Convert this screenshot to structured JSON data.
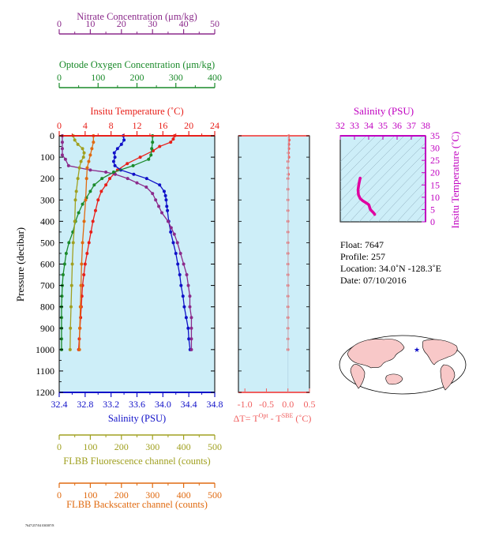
{
  "float_info": {
    "float": "Float:  7647",
    "profile": "Profile:  257",
    "location": "Location:  34.0˚N  -128.3˚E",
    "date": "Date:  07/10/2016"
  },
  "footer_code": "7647/257/04 030387/8",
  "colors": {
    "nitrate": "#8b2a8b",
    "oxygen": "#1a8a2a",
    "temperature": "#e8201a",
    "salinity": "#1010c8",
    "fluorescence": "#a0a020",
    "backscatter": "#e06a10",
    "delta": "#f06060",
    "ts_curve": "#e000a0",
    "plot_bg": "#cdeef8"
  },
  "chart_data": [
    {
      "type": "line",
      "title": "",
      "ylabel": "Pressure (decibar)",
      "ylim": [
        1200,
        0
      ],
      "yticks": [
        "0",
        "100",
        "200",
        "300",
        "400",
        "500",
        "600",
        "700",
        "800",
        "900",
        "1000",
        "1100",
        "1200"
      ],
      "axes": {
        "nitrate": {
          "label": "Nitrate Concentration (μm/kg)",
          "ticks": [
            "0",
            "10",
            "20",
            "30",
            "40",
            "50"
          ],
          "range": [
            0,
            50
          ]
        },
        "oxygen": {
          "label": "Optode Oxygen Concentration (μm/kg)",
          "ticks": [
            "0",
            "100",
            "200",
            "300",
            "400"
          ],
          "range": [
            0,
            400
          ]
        },
        "temperature": {
          "label": "Insitu Temperature (˚C)",
          "ticks": [
            "0",
            "4",
            "8",
            "12",
            "16",
            "20",
            "24"
          ],
          "range": [
            0,
            24
          ]
        },
        "salinity": {
          "label": "Salinity (PSU)",
          "ticks": [
            "32.4",
            "32.8",
            "33.2",
            "33.6",
            "34.0",
            "34.4",
            "34.8"
          ],
          "range": [
            32.4,
            34.8
          ]
        },
        "fluorescence": {
          "label": "FLBB Fluorescence channel (counts)",
          "ticks": [
            "0",
            "100",
            "200",
            "300",
            "400",
            "500"
          ],
          "range": [
            0,
            500
          ]
        },
        "backscatter": {
          "label": "FLBB Backscatter channel (counts)",
          "ticks": [
            "0",
            "100",
            "200",
            "300",
            "400",
            "500"
          ],
          "range": [
            0,
            500
          ]
        }
      },
      "series": [
        {
          "key": "temperature",
          "points": [
            [
              17.8,
              0
            ],
            [
              17.6,
              15
            ],
            [
              17.2,
              30
            ],
            [
              15.5,
              50
            ],
            [
              14.5,
              70
            ],
            [
              12.5,
              100
            ],
            [
              10.5,
              130
            ],
            [
              9.0,
              160
            ],
            [
              7.8,
              200
            ],
            [
              7.2,
              230
            ],
            [
              6.5,
              260
            ],
            [
              6.0,
              300
            ],
            [
              5.6,
              350
            ],
            [
              5.2,
              400
            ],
            [
              4.9,
              450
            ],
            [
              4.6,
              500
            ],
            [
              4.3,
              550
            ],
            [
              4.0,
              600
            ],
            [
              3.8,
              650
            ],
            [
              3.6,
              700
            ],
            [
              3.5,
              750
            ],
            [
              3.4,
              800
            ],
            [
              3.3,
              850
            ],
            [
              3.2,
              900
            ],
            [
              3.1,
              950
            ],
            [
              3.0,
              1000
            ]
          ]
        },
        {
          "key": "salinity",
          "points": [
            [
              33.39,
              0
            ],
            [
              33.4,
              20
            ],
            [
              33.36,
              40
            ],
            [
              33.3,
              60
            ],
            [
              33.25,
              80
            ],
            [
              33.26,
              100
            ],
            [
              33.24,
              120
            ],
            [
              33.26,
              140
            ],
            [
              33.35,
              160
            ],
            [
              33.55,
              180
            ],
            [
              33.75,
              200
            ],
            [
              33.95,
              230
            ],
            [
              34.02,
              260
            ],
            [
              34.04,
              280
            ],
            [
              34.05,
              300
            ],
            [
              34.06,
              330
            ],
            [
              34.07,
              350
            ],
            [
              34.09,
              400
            ],
            [
              34.12,
              450
            ],
            [
              34.16,
              500
            ],
            [
              34.2,
              550
            ],
            [
              34.23,
              600
            ],
            [
              34.26,
              650
            ],
            [
              34.28,
              700
            ],
            [
              34.31,
              750
            ],
            [
              34.33,
              800
            ],
            [
              34.36,
              850
            ],
            [
              34.39,
              900
            ],
            [
              34.4,
              950
            ],
            [
              34.42,
              1000
            ]
          ]
        },
        {
          "key": "nitrate",
          "points": [
            [
              1,
              0
            ],
            [
              1,
              30
            ],
            [
              1,
              60
            ],
            [
              1,
              90
            ],
            [
              2,
              110
            ],
            [
              3,
              140
            ],
            [
              10,
              160
            ],
            [
              15,
              170
            ],
            [
              18,
              180
            ],
            [
              22,
              200
            ],
            [
              25,
              220
            ],
            [
              28,
              240
            ],
            [
              30,
              270
            ],
            [
              31,
              300
            ],
            [
              32,
              330
            ],
            [
              33,
              360
            ],
            [
              35,
              400
            ],
            [
              36,
              430
            ],
            [
              37,
              460
            ],
            [
              38,
              500
            ],
            [
              39,
              550
            ],
            [
              40,
              600
            ],
            [
              41,
              650
            ],
            [
              41.5,
              700
            ],
            [
              42,
              750
            ],
            [
              42,
              800
            ],
            [
              42.5,
              850
            ],
            [
              42.5,
              900
            ],
            [
              42.5,
              950
            ],
            [
              42.5,
              1000
            ]
          ]
        },
        {
          "key": "oxygen",
          "points": [
            [
              240,
              0
            ],
            [
              240,
              30
            ],
            [
              238,
              60
            ],
            [
              236,
              90
            ],
            [
              230,
              110
            ],
            [
              190,
              140
            ],
            [
              140,
              170
            ],
            [
              110,
              200
            ],
            [
              90,
              230
            ],
            [
              80,
              260
            ],
            [
              70,
              290
            ],
            [
              60,
              320
            ],
            [
              50,
              360
            ],
            [
              42,
              400
            ],
            [
              35,
              450
            ],
            [
              25,
              500
            ],
            [
              18,
              550
            ],
            [
              14,
              600
            ],
            [
              10,
              650
            ],
            [
              8,
              700
            ],
            [
              7,
              750
            ],
            [
              6,
              800
            ],
            [
              6,
              850
            ],
            [
              6,
              900
            ],
            [
              6,
              950
            ],
            [
              6,
              1000
            ]
          ]
        },
        {
          "key": "fluorescence",
          "points": [
            [
              45,
              0
            ],
            [
              50,
              20
            ],
            [
              60,
              40
            ],
            [
              75,
              60
            ],
            [
              80,
              80
            ],
            [
              78,
              100
            ],
            [
              70,
              120
            ],
            [
              65,
              150
            ],
            [
              60,
              200
            ],
            [
              55,
              260
            ],
            [
              52,
              300
            ],
            [
              50,
              400
            ],
            [
              45,
              500
            ],
            [
              42,
              600
            ],
            [
              40,
              700
            ],
            [
              38,
              800
            ],
            [
              36,
              900
            ],
            [
              35,
              1000
            ]
          ]
        },
        {
          "key": "backscatter",
          "points": [
            [
              110,
              0
            ],
            [
              110,
              30
            ],
            [
              105,
              60
            ],
            [
              100,
              90
            ],
            [
              95,
              120
            ],
            [
              90,
              150
            ],
            [
              88,
              200
            ],
            [
              85,
              300
            ],
            [
              80,
              400
            ],
            [
              75,
              500
            ],
            [
              72,
              600
            ],
            [
              70,
              700
            ],
            [
              68,
              800
            ],
            [
              66,
              900
            ],
            [
              65,
              1000
            ]
          ]
        }
      ]
    },
    {
      "type": "line",
      "title": "",
      "xlabel_prefix": "ΔT= T",
      "xlabel_sup1": "Opt",
      "xlabel_mid": " - T",
      "xlabel_sup2": "SBE",
      "xlabel_suffix": " (˚C)",
      "xticks": [
        "-1.0",
        "-0.5",
        "0.0",
        "0.5"
      ],
      "xlim": [
        -1.15,
        0.5
      ],
      "ylim": [
        1200,
        0
      ],
      "series": [
        {
          "key": "delta",
          "points": [
            [
              0.02,
              0
            ],
            [
              0.03,
              20
            ],
            [
              0.02,
              40
            ],
            [
              0.02,
              60
            ],
            [
              0.01,
              80
            ],
            [
              0.02,
              100
            ],
            [
              0.0,
              120
            ],
            [
              0.0,
              150
            ],
            [
              0.01,
              180
            ],
            [
              0.0,
              200
            ],
            [
              0.0,
              250
            ],
            [
              0.0,
              300
            ],
            [
              0.0,
              350
            ],
            [
              0.0,
              400
            ],
            [
              0.0,
              450
            ],
            [
              0.0,
              500
            ],
            [
              0.0,
              550
            ],
            [
              0.0,
              600
            ],
            [
              0.0,
              650
            ],
            [
              0.0,
              700
            ],
            [
              0.0,
              750
            ],
            [
              0.0,
              800
            ],
            [
              0.0,
              850
            ],
            [
              0.0,
              900
            ],
            [
              0.0,
              950
            ],
            [
              0.0,
              1000
            ]
          ]
        }
      ]
    },
    {
      "type": "line",
      "title": "Salinity (PSU)",
      "xticks": [
        "32",
        "33",
        "34",
        "35",
        "36",
        "37",
        "38"
      ],
      "xlim": [
        32,
        38
      ],
      "ylabel": "Insitu Temperature (˚C)",
      "yticks": [
        "0",
        "5",
        "10",
        "15",
        "20",
        "25",
        "30",
        "35"
      ],
      "ylim": [
        0,
        35
      ],
      "series": [
        {
          "key": "ts_curve",
          "points": [
            [
              33.4,
              17.8
            ],
            [
              33.35,
              16.5
            ],
            [
              33.3,
              15
            ],
            [
              33.25,
              13
            ],
            [
              33.28,
              11
            ],
            [
              33.4,
              9.5
            ],
            [
              33.6,
              8.5
            ],
            [
              33.8,
              7.8
            ],
            [
              34.0,
              7.0
            ],
            [
              34.05,
              6.3
            ],
            [
              34.08,
              5.6
            ],
            [
              34.12,
              5.0
            ],
            [
              34.18,
              4.6
            ],
            [
              34.25,
              4.2
            ],
            [
              34.32,
              3.8
            ],
            [
              34.38,
              3.4
            ],
            [
              34.42,
              3.0
            ]
          ]
        }
      ]
    }
  ]
}
